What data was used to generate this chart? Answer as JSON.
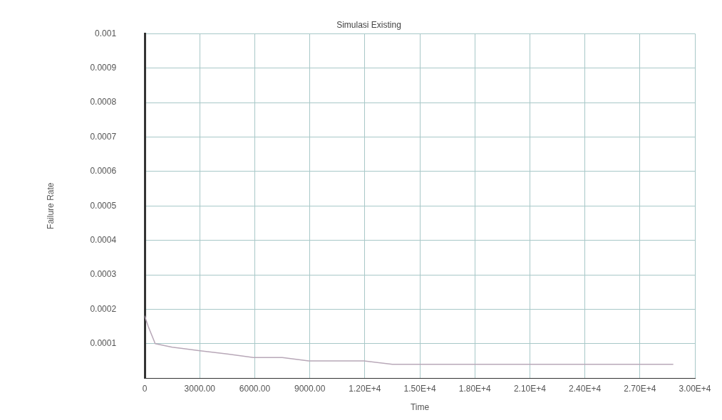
{
  "chart_data": {
    "type": "line",
    "title": "Simulasi Existing",
    "xlabel": "Time",
    "ylabel": "Failure Rate",
    "x": [
      0,
      190,
      570,
      1500,
      2940,
      4500,
      5930,
      7500,
      8940,
      10500,
      11960,
      13500,
      15100,
      18000,
      21000,
      24000,
      27000,
      28800
    ],
    "series": [
      {
        "color": "#b8a8b8",
        "values": [
          0.00018,
          0.00015,
          0.0001,
          9e-05,
          8e-05,
          7e-05,
          6e-05,
          6e-05,
          5e-05,
          5e-05,
          5e-05,
          4e-05,
          4e-05,
          4e-05,
          4e-05,
          4e-05,
          4e-05,
          4e-05
        ]
      }
    ],
    "xlim": [
      0,
      30000
    ],
    "xticks": [
      0,
      {
        "value": 3000,
        "label": "3000.00"
      },
      {
        "value": 6000,
        "label": "6000.00"
      },
      {
        "value": 9000,
        "label": "9000.00"
      },
      {
        "value": 12000,
        "label": "1.20E+4"
      },
      {
        "value": 15000,
        "label": "1.50E+4"
      },
      {
        "value": 18000,
        "label": "1.80E+4"
      },
      {
        "value": 21000,
        "label": "2.10E+4"
      },
      {
        "value": 24000,
        "label": "2.40E+4"
      },
      {
        "value": 27000,
        "label": "2.70E+4"
      },
      {
        "value": 30000,
        "label": "3.00E+4"
      }
    ],
    "ylim": [
      0,
      0.001
    ],
    "yticks": [
      {
        "value": 0,
        "label": null
      },
      0.0001,
      0.0002,
      0.0003,
      0.0004,
      0.0005,
      0.0006,
      0.0007,
      0.0008,
      0.0009,
      0.001
    ],
    "grid": true,
    "marker": "none",
    "line_style": "solid"
  }
}
